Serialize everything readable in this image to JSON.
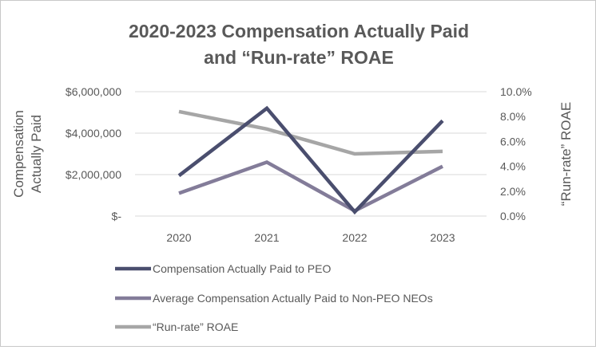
{
  "chart_data": {
    "type": "line",
    "title_line1": "2020-2023 Compensation Actually Paid",
    "title_line2": "and “Run-rate” ROAE",
    "ylabel_left_line1": "Compensation",
    "ylabel_left_line2": "Actually Paid",
    "ylabel_right": "“Run-rate” ROAE",
    "categories": [
      "2020",
      "2021",
      "2022",
      "2023"
    ],
    "y_left": {
      "min": 0,
      "max": 6000000,
      "ticks": [
        0,
        2000000,
        4000000,
        6000000
      ],
      "tick_labels": [
        "$-",
        "$2,000,000",
        "$4,000,000",
        "$6,000,000"
      ]
    },
    "y_right": {
      "min": 0,
      "max": 10,
      "ticks": [
        0,
        2,
        4,
        6,
        8,
        10
      ],
      "tick_labels": [
        "0.0%",
        "2.0%",
        "4.0%",
        "6.0%",
        "8.0%",
        "10.0%"
      ]
    },
    "grid": "horizontal",
    "legend_position": "bottom",
    "series": [
      {
        "name": "Compensation Actually Paid to PEO",
        "axis": "left",
        "color": "#4a4e6e",
        "values": [
          1950000,
          5200000,
          200000,
          4600000
        ]
      },
      {
        "name": "Average Compensation Actually Paid to Non-PEO NEOs",
        "axis": "left",
        "color": "#837c99",
        "values": [
          1100000,
          2600000,
          250000,
          2400000
        ]
      },
      {
        "name": "“Run-rate” ROAE",
        "axis": "right",
        "color": "#a6a6a6",
        "values": [
          8.4,
          7.0,
          5.0,
          5.2
        ]
      }
    ]
  }
}
